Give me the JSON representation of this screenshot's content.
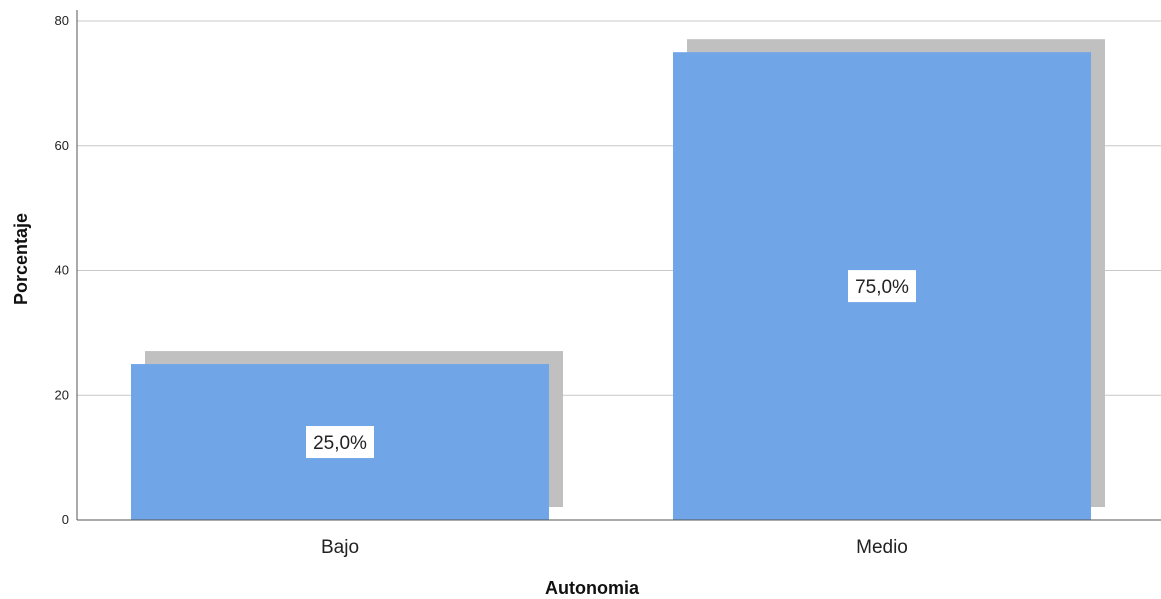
{
  "chart_data": {
    "type": "bar",
    "categories": [
      "Bajo",
      "Medio"
    ],
    "values": [
      25.0,
      75.0
    ],
    "data_labels": [
      "25,0%",
      "75,0%"
    ],
    "xlabel": "Autonomia",
    "ylabel": "Porcentaje",
    "ylim": [
      0,
      80
    ],
    "yticks": [
      0,
      20,
      40,
      60,
      80
    ],
    "grid": true,
    "bar_color": "#70a5e8",
    "shadow_color": "#c0c0c0"
  }
}
